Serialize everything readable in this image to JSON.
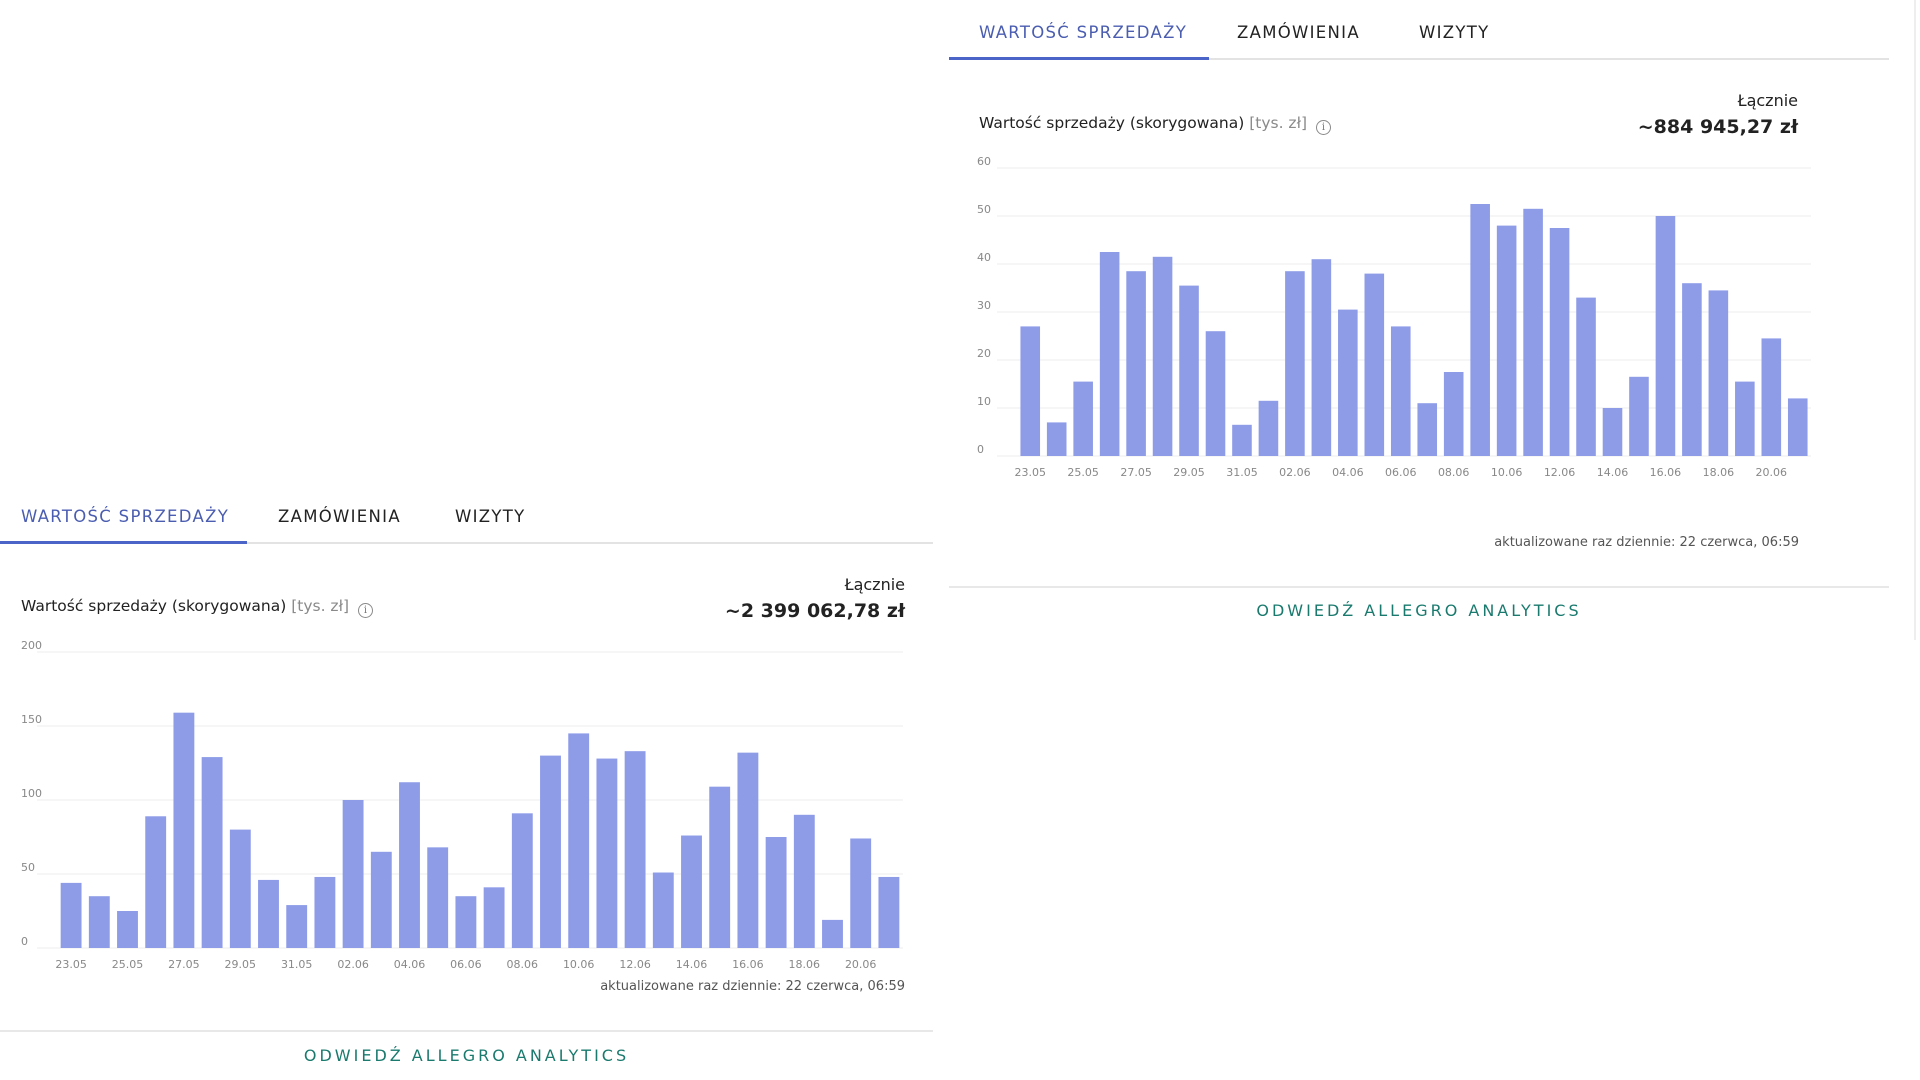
{
  "panels": {
    "right": {
      "tabs": [
        {
          "label": "WARTOŚĆ SPRZEDAŻY",
          "active": true
        },
        {
          "label": "ZAMÓWIENIA",
          "active": false
        },
        {
          "label": "WIZYTY",
          "active": false
        }
      ],
      "metric": {
        "label": "Wartość sprzedaży (skorygowana)",
        "unit": "[tys. zł]"
      },
      "total": {
        "label": "Łącznie",
        "value": "~884 945,27 zł"
      },
      "updated": "aktualizowane raz dziennie: 22 czerwca, 06:59",
      "cta": "ODWIEDŹ ALLEGRO ANALYTICS"
    },
    "left": {
      "tabs": [
        {
          "label": "WARTOŚĆ SPRZEDAŻY",
          "active": true
        },
        {
          "label": "ZAMÓWIENIA",
          "active": false
        },
        {
          "label": "WIZYTY",
          "active": false
        }
      ],
      "metric": {
        "label": "Wartość sprzedaży (skorygowana)",
        "unit": "[tys. zł]"
      },
      "total": {
        "label": "Łącznie",
        "value": "~2 399 062,78 zł"
      },
      "updated": "aktualizowane raz dziennie: 22 czerwca, 06:59",
      "cta": "ODWIEDŹ ALLEGRO ANALYTICS"
    }
  },
  "colors": {
    "bar": "#8e9ce8",
    "active_tab": "#4a5db0",
    "tab_underline": "#4a64c8",
    "cta": "#1a7a6e"
  },
  "icons": {
    "info": "info-icon",
    "info_glyph": "i"
  },
  "chart_data": [
    {
      "type": "bar",
      "categories": [
        "23.05",
        "24.05",
        "25.05",
        "26.05",
        "27.05",
        "28.05",
        "29.05",
        "30.05",
        "31.05",
        "01.06",
        "02.06",
        "03.06",
        "04.06",
        "05.06",
        "06.06",
        "07.06",
        "08.06",
        "09.06",
        "10.06",
        "11.06",
        "12.06",
        "13.06",
        "14.06",
        "15.06",
        "16.06",
        "17.06",
        "18.06",
        "19.06",
        "20.06",
        "21.06"
      ],
      "tick_labels": [
        "23.05",
        "25.05",
        "27.05",
        "29.05",
        "31.05",
        "02.06",
        "04.06",
        "06.06",
        "08.06",
        "10.06",
        "12.06",
        "14.06",
        "16.06",
        "18.06",
        "20.06"
      ],
      "values": [
        27,
        7,
        15.5,
        42.5,
        38.5,
        41.5,
        35.5,
        26,
        6.5,
        11.5,
        38.5,
        41,
        30.5,
        38,
        27,
        11,
        17.5,
        52.5,
        48,
        51.5,
        47.5,
        33,
        10,
        16.5,
        50,
        36,
        34.5,
        15.5,
        24.5,
        12
      ],
      "yticks": [
        0,
        10,
        20,
        30,
        40,
        50,
        60
      ],
      "ylim": [
        0,
        60
      ],
      "grid": true
    },
    {
      "type": "bar",
      "categories": [
        "23.05",
        "24.05",
        "25.05",
        "26.05",
        "27.05",
        "28.05",
        "29.05",
        "30.05",
        "31.05",
        "01.06",
        "02.06",
        "03.06",
        "04.06",
        "05.06",
        "06.06",
        "07.06",
        "08.06",
        "09.06",
        "10.06",
        "11.06",
        "12.06",
        "13.06",
        "14.06",
        "15.06",
        "16.06",
        "17.06",
        "18.06",
        "19.06",
        "20.06",
        "21.06"
      ],
      "tick_labels": [
        "23.05",
        "25.05",
        "27.05",
        "29.05",
        "31.05",
        "02.06",
        "04.06",
        "06.06",
        "08.06",
        "10.06",
        "12.06",
        "14.06",
        "16.06",
        "18.06",
        "20.06"
      ],
      "values": [
        44,
        35,
        25,
        89,
        159,
        129,
        80,
        46,
        29,
        48,
        100,
        65,
        112,
        68,
        35,
        41,
        91,
        130,
        145,
        128,
        133,
        51,
        76,
        109,
        132,
        75,
        90,
        19,
        74,
        48
      ],
      "yticks": [
        0,
        50,
        100,
        150,
        200
      ],
      "ylim": [
        0,
        200
      ],
      "grid": true
    }
  ]
}
